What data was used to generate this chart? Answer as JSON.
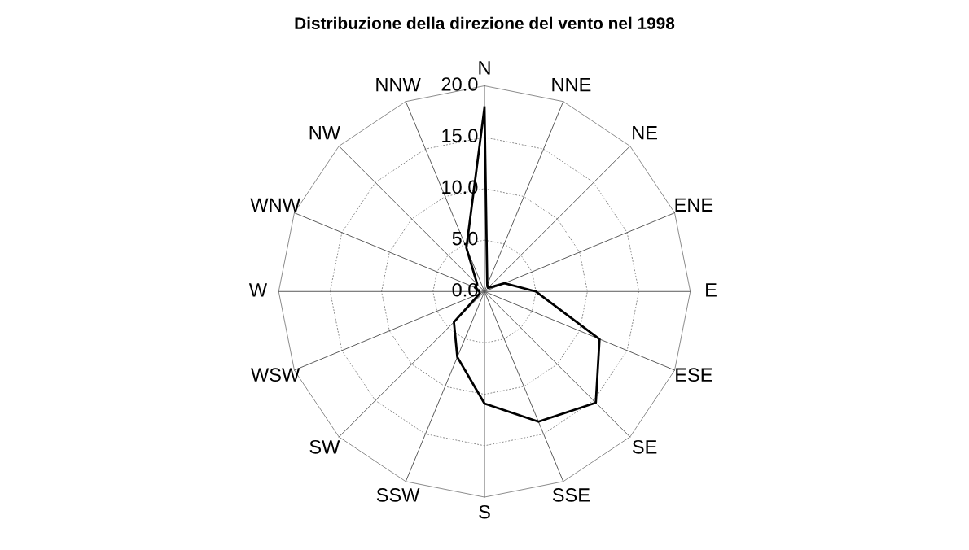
{
  "chart_data": {
    "type": "radar",
    "title": "Distribuzione della direzione del vento nel 1998",
    "categories": [
      "N",
      "NNE",
      "NE",
      "ENE",
      "E",
      "ESE",
      "SE",
      "SSE",
      "S",
      "SSW",
      "SW",
      "WSW",
      "W",
      "WNW",
      "NW",
      "NNW"
    ],
    "series": [
      {
        "color": "#000000",
        "values": [
          17.9,
          0.7,
          0.5,
          2.1,
          5.0,
          12.1,
          15.3,
          13.7,
          10.9,
          6.9,
          4.2,
          0.5,
          0.5,
          1.0,
          1.0,
          4.6
        ]
      }
    ],
    "ylim": [
      0,
      20
    ],
    "yticks": [
      {
        "value": 0,
        "label": "0.0"
      },
      {
        "value": 5,
        "label": "5.0"
      },
      {
        "value": 10,
        "label": "10.0"
      },
      {
        "value": 15,
        "label": "15.0"
      },
      {
        "value": 20,
        "label": "20.0"
      }
    ],
    "grid": true,
    "marker": "none",
    "line_style": "solid"
  }
}
